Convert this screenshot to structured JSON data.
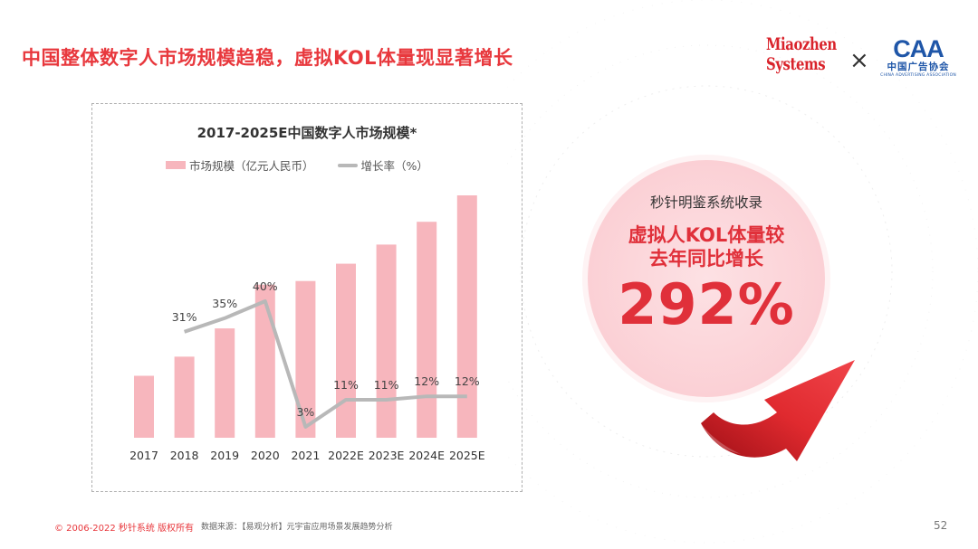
{
  "header": {
    "title": "中国整体数字人市场规模趋稳，虚拟KOL体量现显著增长"
  },
  "logos": {
    "miaozhen_line1": "Miaozhen",
    "miaozhen_line2": "Systems",
    "times": "×",
    "caa_mark": "CAA",
    "caa_cn": "中国广告协会",
    "caa_en": "CHINA ADVERTISING ASSOCIATION"
  },
  "chart_data": {
    "type": "bar",
    "title": "2017-2025E中国数字人市场规模*",
    "categories": [
      "2017",
      "2018",
      "2019",
      "2020",
      "2021",
      "2022E",
      "2023E",
      "2024E",
      "2025E"
    ],
    "series": [
      {
        "name": "市场规模（亿元人民币）",
        "type": "bar",
        "values": [
          68,
          89,
          120,
          168,
          172,
          191,
          212,
          237,
          266
        ]
      },
      {
        "name": "增长率（%）",
        "type": "line",
        "values": [
          null,
          31,
          35,
          40,
          3,
          11,
          11,
          12,
          12
        ],
        "labels": [
          "",
          "31%",
          "35%",
          "40%",
          "3%",
          "11%",
          "11%",
          "12%",
          "12%"
        ]
      }
    ],
    "bar_color": "#f7b6bd",
    "line_color": "#b8b8b8",
    "legend": "top",
    "grid": false
  },
  "callout": {
    "subtitle": "秒针明鉴系统收录",
    "headline_line1": "虚拟人KOL体量较",
    "headline_line2": "去年同比增长",
    "value": "292%",
    "accent_color": "#e0303a"
  },
  "footer": {
    "copyright": "© 2006-2022 秒针系统 版权所有",
    "source": "数据来源：【易观分析】元宇宙应用场景发展趋势分析",
    "page_number": "52"
  }
}
